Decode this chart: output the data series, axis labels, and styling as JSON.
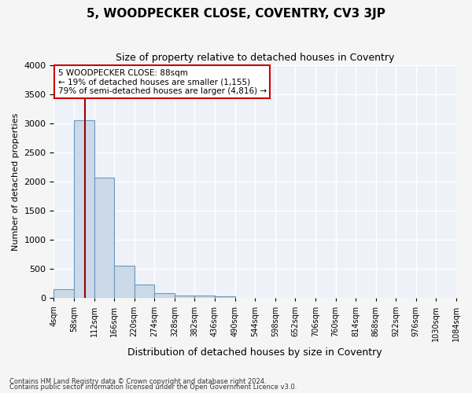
{
  "title": "5, WOODPECKER CLOSE, COVENTRY, CV3 3JP",
  "subtitle": "Size of property relative to detached houses in Coventry",
  "xlabel": "Distribution of detached houses by size in Coventry",
  "ylabel": "Number of detached properties",
  "bin_edges": [
    4,
    58,
    112,
    166,
    220,
    274,
    328,
    382,
    436,
    490,
    544,
    598,
    652,
    706,
    760,
    814,
    868,
    922,
    976,
    1030,
    1084
  ],
  "bar_heights": [
    150,
    3050,
    2070,
    560,
    230,
    80,
    50,
    40,
    30,
    0,
    0,
    0,
    0,
    0,
    0,
    0,
    0,
    0,
    0,
    0
  ],
  "bar_color": "#ccd9e8",
  "bar_edge_color": "#6699bb",
  "property_size": 88,
  "property_line_color": "#990000",
  "annotation_text": "5 WOODPECKER CLOSE: 88sqm\n← 19% of detached houses are smaller (1,155)\n79% of semi-detached houses are larger (4,816) →",
  "annotation_box_color": "#ffffff",
  "annotation_box_edge": "#cc0000",
  "ylim": [
    0,
    4000
  ],
  "yticks": [
    0,
    500,
    1000,
    1500,
    2000,
    2500,
    3000,
    3500,
    4000
  ],
  "bg_color": "#eef2f8",
  "grid_color": "#ffffff",
  "fig_bg_color": "#f5f5f5",
  "footer1": "Contains HM Land Registry data © Crown copyright and database right 2024.",
  "footer2": "Contains public sector information licensed under the Open Government Licence v3.0."
}
